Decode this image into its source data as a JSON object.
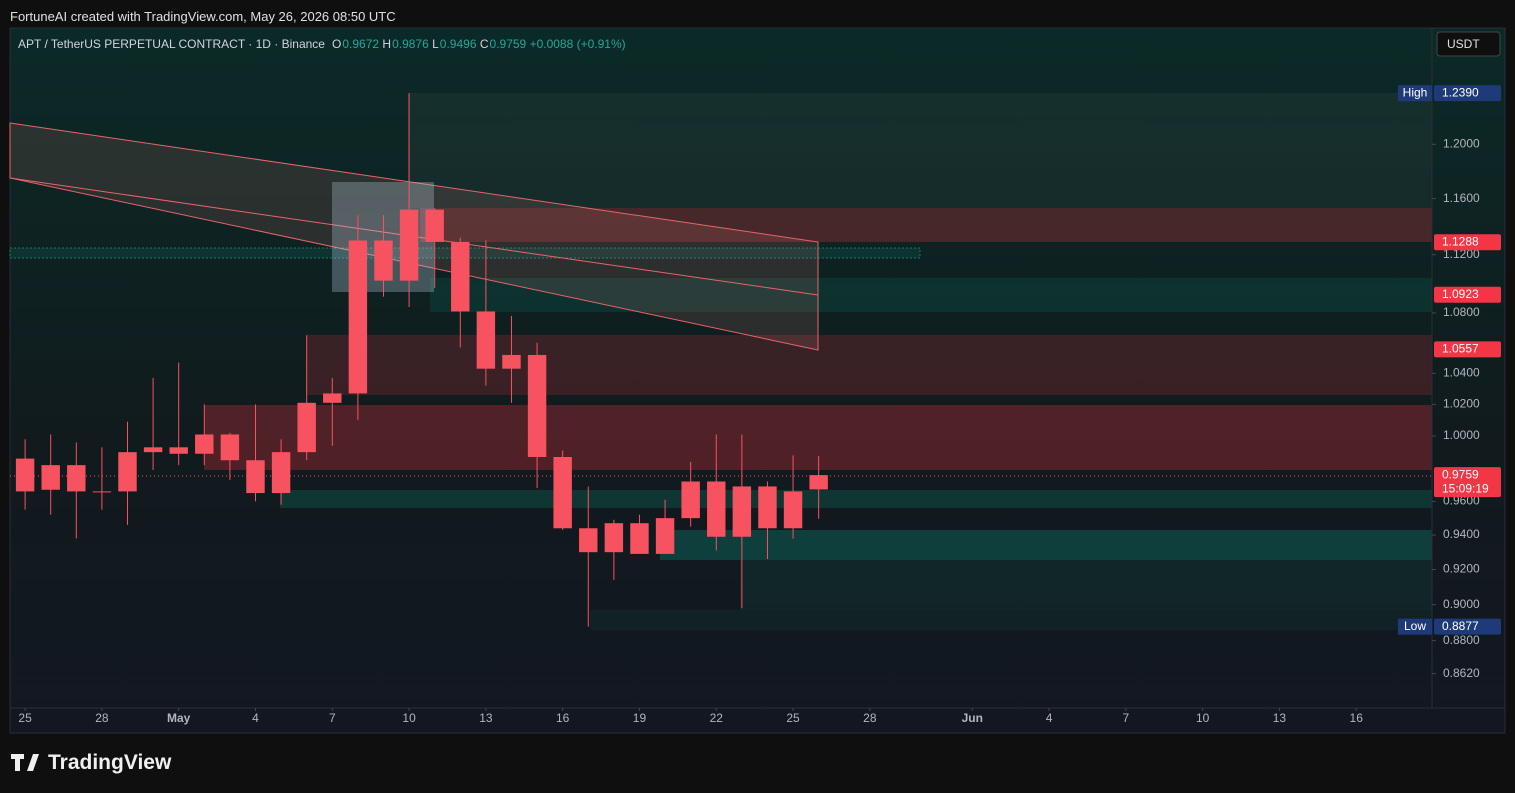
{
  "header": {
    "credit": "FortuneAI created with TradingView.com, May 26, 2026 08:50 UTC"
  },
  "chart_data": {
    "type": "candlestick",
    "title": "APT / TetherUS PERPETUAL CONTRACT · 1D · Binance",
    "legend": {
      "o": "O",
      "h": "H",
      "l": "L",
      "c": "C",
      "change": "+0.0088 (+0.91%)"
    },
    "currency": "USDT",
    "color": "#f7525f",
    "log": true,
    "open": [
      0.986,
      0.967,
      0.982,
      0.966,
      0.966,
      0.99,
      0.993,
      0.989,
      1.001,
      0.985,
      0.965,
      0.99,
      1.021,
      1.027,
      1.13,
      1.102,
      1.152,
      1.129,
      1.081,
      1.043,
      1.052,
      0.987,
      0.944,
      0.93,
      0.947,
      0.929,
      0.95,
      0.972,
      0.939,
      0.969,
      0.944,
      0.9672
    ],
    "high": [
      0.998,
      1.001,
      0.996,
      0.993,
      1.009,
      1.037,
      1.047,
      1.02,
      1.002,
      1.02,
      0.998,
      1.065,
      1.037,
      1.148,
      1.148,
      1.239,
      1.153,
      1.132,
      1.13,
      1.078,
      1.06,
      0.991,
      0.969,
      0.949,
      0.952,
      0.961,
      0.984,
      1.001,
      1.001,
      0.972,
      0.988,
      0.9876
    ],
    "low": [
      0.955,
      0.952,
      0.938,
      0.955,
      0.946,
      0.979,
      0.982,
      0.982,
      0.973,
      0.96,
      0.958,
      0.985,
      0.994,
      1.01,
      1.091,
      1.084,
      1.097,
      1.057,
      1.032,
      1.021,
      0.968,
      0.943,
      0.8877,
      0.914,
      0.929,
      0.929,
      0.945,
      0.931,
      0.898,
      0.926,
      0.938,
      0.9496
    ],
    "close": [
      0.966,
      0.982,
      0.966,
      0.966,
      0.99,
      0.993,
      0.989,
      1.001,
      0.985,
      0.965,
      0.99,
      1.021,
      1.027,
      1.13,
      1.102,
      1.152,
      1.129,
      1.081,
      1.043,
      1.052,
      0.987,
      0.944,
      0.93,
      0.947,
      0.929,
      0.95,
      0.972,
      0.939,
      0.969,
      0.944,
      0.966,
      0.9759
    ],
    "xlim": [
      -0.59,
      54.96
    ],
    "xticks": [
      {
        "value": 0,
        "label": "25"
      },
      {
        "value": 3,
        "label": "28"
      },
      {
        "value": 6,
        "label": "May"
      },
      {
        "value": 9,
        "label": "4"
      },
      {
        "value": 12,
        "label": "7"
      },
      {
        "value": 15,
        "label": "10"
      },
      {
        "value": 18,
        "label": "13"
      },
      {
        "value": 21,
        "label": "16"
      },
      {
        "value": 24,
        "label": "19"
      },
      {
        "value": 27,
        "label": "22"
      },
      {
        "value": 30,
        "label": "25"
      },
      {
        "value": 33,
        "label": "28"
      },
      {
        "value": 37,
        "label": "Jun"
      },
      {
        "value": 40,
        "label": "4"
      },
      {
        "value": 43,
        "label": "7"
      },
      {
        "value": 46,
        "label": "10"
      },
      {
        "value": 49,
        "label": "13"
      },
      {
        "value": 52,
        "label": "16"
      }
    ],
    "ylim": [
      0.8437,
      1.2905
    ],
    "yticks": [
      {
        "value": 1.2,
        "label": "1.2000"
      },
      {
        "value": 1.16,
        "label": "1.1600"
      },
      {
        "value": 1.12,
        "label": "1.1200"
      },
      {
        "value": 1.08,
        "label": "1.0800"
      },
      {
        "value": 1.04,
        "label": "1.0400"
      },
      {
        "value": 1.02,
        "label": "1.0200"
      },
      {
        "value": 1.0,
        "label": "1.0000"
      },
      {
        "value": 0.96,
        "label": "0.9600"
      },
      {
        "value": 0.94,
        "label": "0.9400"
      },
      {
        "value": 0.92,
        "label": "0.9200"
      },
      {
        "value": 0.9,
        "label": "0.9000"
      },
      {
        "value": 0.88,
        "label": "0.8800"
      },
      {
        "value": 0.862,
        "label": "0.8620"
      }
    ],
    "price_labels": [
      {
        "name": "High",
        "value": 1.239,
        "label": "1.2390",
        "color": "#1e3a78"
      },
      {
        "value": 1.1288,
        "label": "1.1288",
        "color": "#f23645"
      },
      {
        "value": 1.0923,
        "label": "1.0923",
        "color": "#f23645"
      },
      {
        "value": 1.0557,
        "label": "1.0557",
        "color": "#f23645"
      },
      {
        "value": 0.9759,
        "label": "0.9759",
        "countdown": "15:09:19",
        "color": "#f23645"
      },
      {
        "name": "Low",
        "value": 0.8877,
        "label": "0.8877",
        "color": "#1e3a78"
      }
    ]
  },
  "footer": {
    "brand": "TradingView"
  }
}
